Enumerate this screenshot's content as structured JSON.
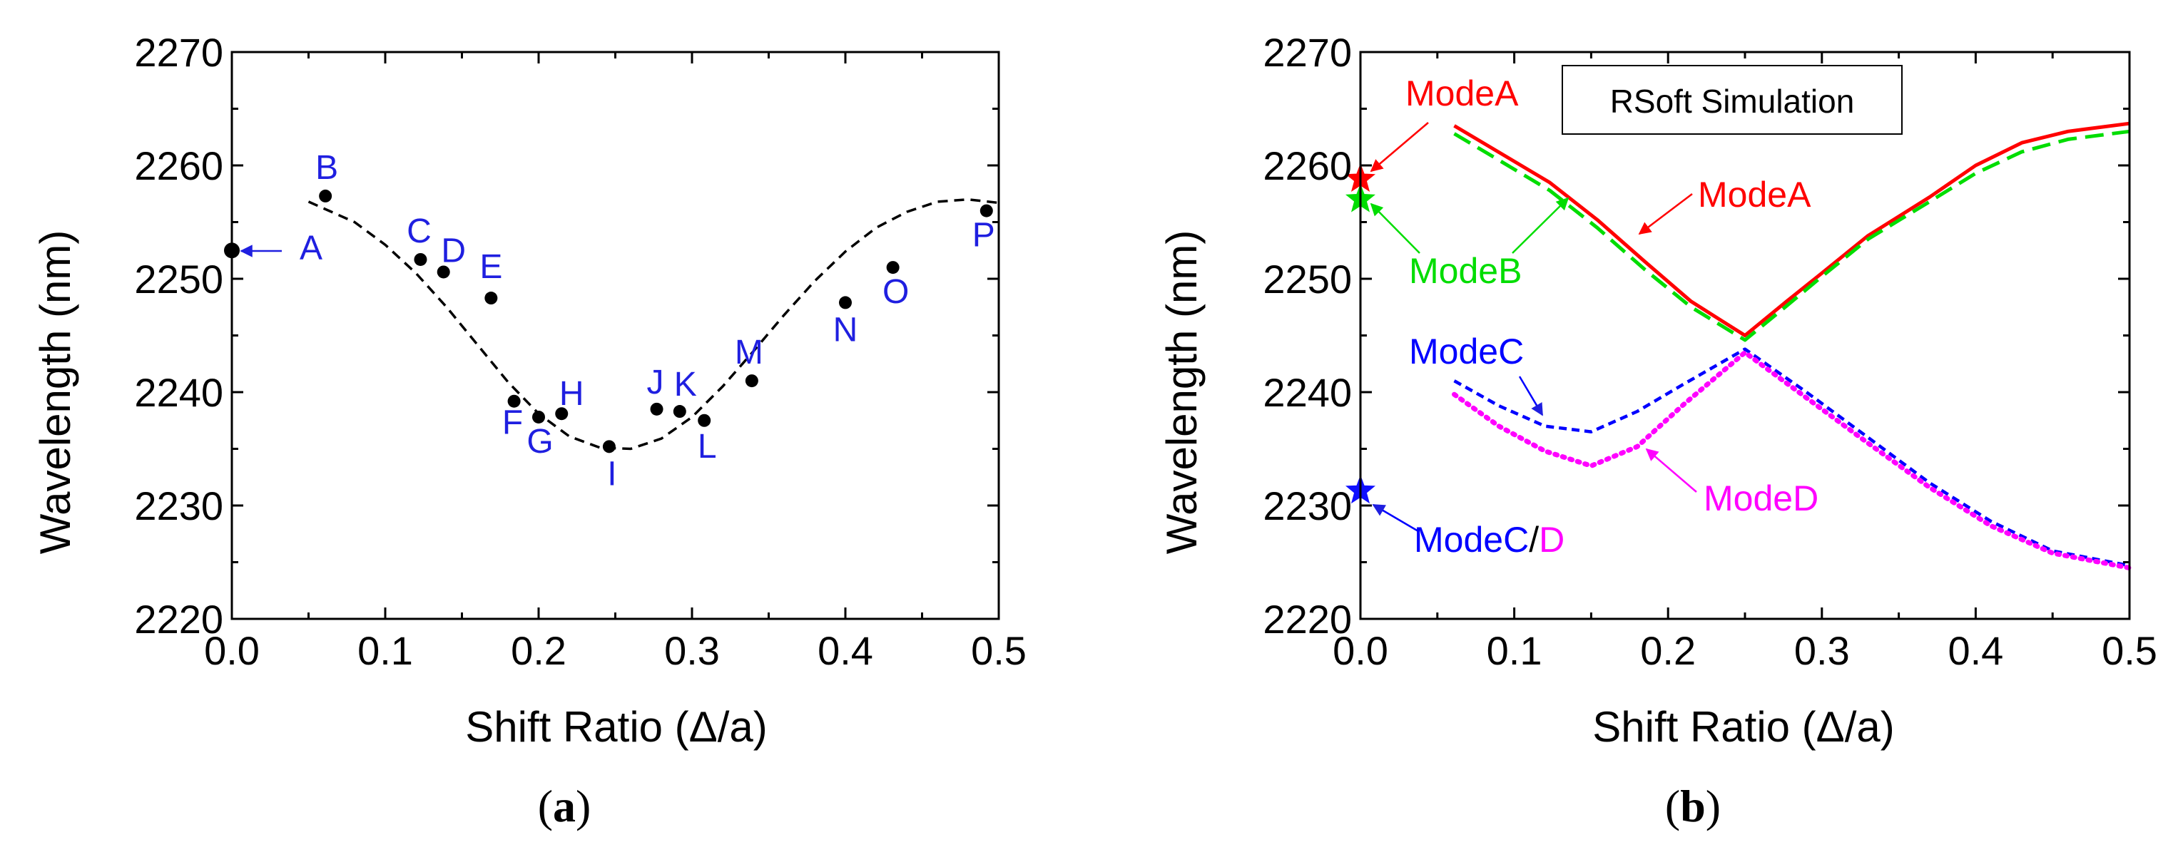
{
  "colors": {
    "axis": "#000000",
    "dashed_fit": "#000000",
    "point_label": "#1f1fe0",
    "modeA": "#ff0000",
    "modeB": "#00dd00",
    "modeC": "#0000ff",
    "modeD": "#ff00ff",
    "star_A": "#ff0000",
    "star_B": "#00dd00",
    "star_CD": "#1010ff"
  },
  "chart_data": [
    {
      "id": "a",
      "type": "scatter",
      "subfigure_label": "(a)",
      "subfigure_letter": "a",
      "title": "",
      "xlabel": "Shift Ratio (Δ/a)",
      "ylabel": "Wavelength (nm)",
      "xlim": [
        0.0,
        0.5
      ],
      "ylim": [
        2220,
        2270
      ],
      "xticks": [
        "0.0",
        "0.1",
        "0.2",
        "0.3",
        "0.4",
        "0.5"
      ],
      "yticks": [
        "2220",
        "2230",
        "2240",
        "2250",
        "2260",
        "2270"
      ],
      "grid": false,
      "points": [
        {
          "label": "A",
          "x": 0.0,
          "y": 2252.5
        },
        {
          "label": "B",
          "x": 0.061,
          "y": 2257.3
        },
        {
          "label": "C",
          "x": 0.123,
          "y": 2251.7
        },
        {
          "label": "D",
          "x": 0.138,
          "y": 2250.6
        },
        {
          "label": "E",
          "x": 0.169,
          "y": 2248.3
        },
        {
          "label": "F",
          "x": 0.184,
          "y": 2239.2
        },
        {
          "label": "G",
          "x": 0.2,
          "y": 2237.8
        },
        {
          "label": "H",
          "x": 0.215,
          "y": 2238.1
        },
        {
          "label": "I",
          "x": 0.246,
          "y": 2235.2
        },
        {
          "label": "J",
          "x": 0.277,
          "y": 2238.5
        },
        {
          "label": "K",
          "x": 0.292,
          "y": 2238.3
        },
        {
          "label": "L",
          "x": 0.308,
          "y": 2237.5
        },
        {
          "label": "M",
          "x": 0.339,
          "y": 2241.0
        },
        {
          "label": "N",
          "x": 0.4,
          "y": 2247.9
        },
        {
          "label": "O",
          "x": 0.431,
          "y": 2251.0
        },
        {
          "label": "P",
          "x": 0.492,
          "y": 2256.0
        }
      ],
      "fit_curve": {
        "style": "dashed",
        "x": [
          0.05,
          0.08,
          0.1,
          0.12,
          0.14,
          0.16,
          0.18,
          0.2,
          0.22,
          0.24,
          0.26,
          0.28,
          0.3,
          0.32,
          0.34,
          0.36,
          0.38,
          0.4,
          0.42,
          0.44,
          0.46,
          0.48,
          0.5
        ],
        "y": [
          2256.8,
          2255.0,
          2253.0,
          2250.5,
          2247.5,
          2244.2,
          2240.9,
          2238.1,
          2236.1,
          2235.1,
          2235.0,
          2235.9,
          2237.8,
          2240.5,
          2243.6,
          2246.8,
          2249.8,
          2252.4,
          2254.5,
          2255.9,
          2256.8,
          2257.0,
          2256.7
        ]
      }
    },
    {
      "id": "b",
      "type": "line",
      "subfigure_label": "(b)",
      "subfigure_letter": "b",
      "title": "",
      "legend_box": "RSoft Simulation",
      "xlabel": "Shift Ratio (Δ/a)",
      "ylabel": "Wavelength (nm)",
      "xlim": [
        0.0,
        0.5
      ],
      "ylim": [
        2220,
        2270
      ],
      "xticks": [
        "0.0",
        "0.1",
        "0.2",
        "0.3",
        "0.4",
        "0.5"
      ],
      "yticks": [
        "2220",
        "2230",
        "2240",
        "2250",
        "2260",
        "2270"
      ],
      "grid": false,
      "series": [
        {
          "name": "ModeA",
          "style": "solid",
          "color_key": "modeA",
          "x": [
            0.061,
            0.092,
            0.123,
            0.154,
            0.185,
            0.215,
            0.25,
            0.277,
            0.3,
            0.33,
            0.37,
            0.4,
            0.43,
            0.46,
            0.5
          ],
          "y": [
            2263.5,
            2261.0,
            2258.5,
            2255.2,
            2251.5,
            2248.0,
            2245.0,
            2248.0,
            2250.5,
            2253.8,
            2257.2,
            2260.0,
            2262.0,
            2263.0,
            2263.7
          ]
        },
        {
          "name": "ModeB",
          "style": "dashed",
          "color_key": "modeB",
          "x": [
            0.061,
            0.092,
            0.123,
            0.154,
            0.185,
            0.215,
            0.25,
            0.277,
            0.3,
            0.33,
            0.37,
            0.4,
            0.43,
            0.46,
            0.5
          ],
          "y": [
            2262.8,
            2260.3,
            2257.8,
            2254.5,
            2250.8,
            2247.5,
            2244.6,
            2247.6,
            2250.2,
            2253.5,
            2256.8,
            2259.3,
            2261.2,
            2262.3,
            2263.0
          ]
        },
        {
          "name": "ModeC",
          "style": "short-dashed",
          "color_key": "modeC",
          "x": [
            0.061,
            0.09,
            0.12,
            0.15,
            0.18,
            0.21,
            0.25,
            0.29,
            0.33,
            0.37,
            0.41,
            0.45,
            0.5
          ],
          "y": [
            2241.0,
            2238.8,
            2237.0,
            2236.5,
            2238.3,
            2240.7,
            2243.8,
            2240.0,
            2236.0,
            2232.0,
            2228.6,
            2226.0,
            2224.7
          ]
        },
        {
          "name": "ModeD",
          "style": "dotted",
          "color_key": "modeD",
          "x": [
            0.061,
            0.09,
            0.12,
            0.15,
            0.18,
            0.21,
            0.25,
            0.29,
            0.33,
            0.37,
            0.41,
            0.45,
            0.5
          ],
          "y": [
            2239.8,
            2237.0,
            2234.8,
            2233.5,
            2235.2,
            2238.9,
            2243.5,
            2239.5,
            2235.5,
            2231.6,
            2228.2,
            2225.8,
            2224.5
          ]
        }
      ],
      "stars": [
        {
          "label": "ModeA",
          "x": 0.0,
          "y": 2258.8,
          "color_key": "star_A"
        },
        {
          "label": "ModeB",
          "x": 0.0,
          "y": 2257.0,
          "color_key": "star_B"
        },
        {
          "label": "ModeC/D",
          "x": 0.0,
          "y": 2231.3,
          "color_key": "star_CD"
        }
      ],
      "annotations": {
        "modeA_star": "ModeA",
        "modeA_curve": "ModeA",
        "modeB": "ModeB",
        "modeC": "ModeC",
        "modeD": "ModeD",
        "modeCD_prefix": "ModeC",
        "modeCD_slash": "/",
        "modeCD_suffix": "D"
      }
    }
  ]
}
